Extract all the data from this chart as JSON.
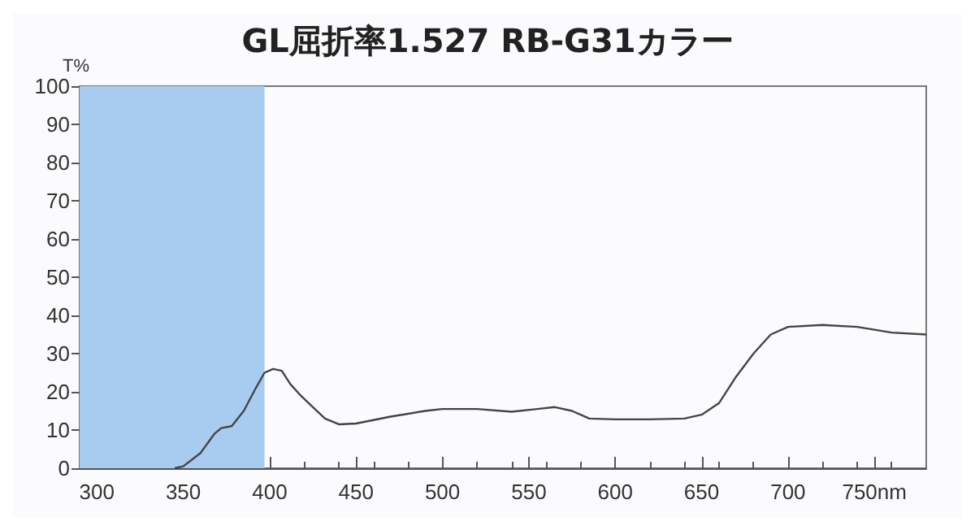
{
  "chart_data": {
    "type": "line",
    "title": "GL屈折率1.527 RB-G31カラー",
    "ylabel": "T%",
    "x": [
      345,
      350,
      360,
      368,
      372,
      378,
      385,
      392,
      397,
      402,
      407,
      412,
      418,
      425,
      432,
      440,
      450,
      470,
      490,
      500,
      520,
      540,
      555,
      565,
      575,
      585,
      600,
      620,
      640,
      650,
      660,
      670,
      680,
      690,
      700,
      720,
      740,
      760,
      780
    ],
    "series": [
      {
        "color": "#444444",
        "values": [
          0,
          0.5,
          4,
          9,
          10.5,
          11,
          15,
          21,
          25,
          26,
          25.5,
          22,
          19,
          16,
          13,
          11.5,
          11.7,
          13.5,
          15,
          15.5,
          15.5,
          14.8,
          15.5,
          16,
          15,
          13,
          12.8,
          12.8,
          13,
          14,
          17,
          24,
          30,
          35,
          37,
          37.5,
          37,
          35.5,
          35
        ]
      }
    ],
    "xlim": [
      290,
      780
    ],
    "xticks": [
      300,
      350,
      400,
      450,
      500,
      550,
      600,
      650,
      700,
      {
        "value": 750,
        "label": "750nm"
      }
    ],
    "ylim": [
      0,
      100
    ],
    "yticks": [
      0,
      10,
      20,
      30,
      40,
      50,
      60,
      70,
      80,
      90,
      100
    ],
    "bands": [
      {
        "axis": "x",
        "from": 290,
        "to": 397,
        "color": "#a8ccf0"
      }
    ],
    "grid": false,
    "marker": "none",
    "line_style": "solid"
  }
}
